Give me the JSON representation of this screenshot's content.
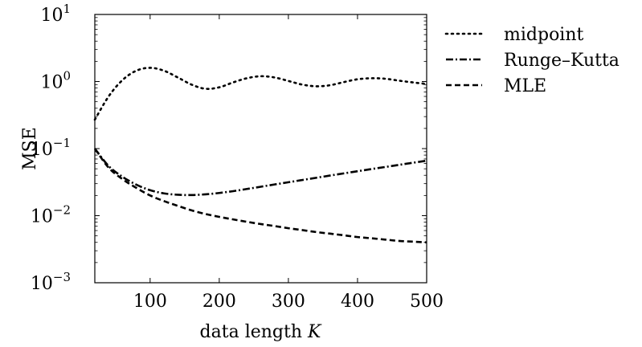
{
  "chart_data": {
    "type": "line",
    "title": "",
    "xlabel": "data length",
    "xlabel_var": "K",
    "ylabel": "MSE",
    "xlim": [
      20,
      500
    ],
    "ylim": [
      0.001,
      10
    ],
    "yscale": "log",
    "grid": false,
    "legend_position": "outside-right",
    "x_ticks": [
      {
        "value": 100,
        "label": "100"
      },
      {
        "value": 200,
        "label": "200"
      },
      {
        "value": 300,
        "label": "300"
      },
      {
        "value": 400,
        "label": "400"
      },
      {
        "value": 500,
        "label": "500"
      }
    ],
    "y_ticks": [
      {
        "value": 0.001,
        "base": "10",
        "exp": "−3"
      },
      {
        "value": 0.01,
        "base": "10",
        "exp": "−2"
      },
      {
        "value": 0.1,
        "base": "10",
        "exp": "−1"
      },
      {
        "value": 1,
        "base": "10",
        "exp": "0"
      },
      {
        "value": 10,
        "base": "10",
        "exp": "1"
      }
    ],
    "series": [
      {
        "name": "midpoint",
        "dash": "dotted",
        "x": [
          20,
          40,
          60,
          80,
          100,
          120,
          140,
          160,
          180,
          200,
          220,
          240,
          260,
          280,
          300,
          320,
          340,
          360,
          380,
          400,
          420,
          440,
          460,
          480,
          500
        ],
        "y": [
          0.27,
          0.6,
          1.05,
          1.45,
          1.6,
          1.45,
          1.15,
          0.9,
          0.78,
          0.82,
          0.97,
          1.12,
          1.2,
          1.15,
          1.02,
          0.9,
          0.85,
          0.88,
          0.98,
          1.08,
          1.12,
          1.1,
          1.03,
          0.97,
          0.92
        ]
      },
      {
        "name": "Runge–Kutta",
        "dash": "dashdot",
        "x": [
          20,
          40,
          60,
          80,
          100,
          120,
          140,
          160,
          180,
          200,
          220,
          240,
          260,
          280,
          300,
          320,
          340,
          360,
          380,
          400,
          420,
          440,
          460,
          480,
          500
        ],
        "y": [
          0.1,
          0.055,
          0.038,
          0.029,
          0.024,
          0.0215,
          0.0205,
          0.0203,
          0.0208,
          0.0218,
          0.0232,
          0.025,
          0.027,
          0.0292,
          0.0315,
          0.034,
          0.0367,
          0.0396,
          0.0427,
          0.046,
          0.0495,
          0.0532,
          0.0572,
          0.0615,
          0.066
        ]
      },
      {
        "name": "MLE",
        "dash": "dashed",
        "x": [
          20,
          40,
          60,
          80,
          100,
          120,
          140,
          160,
          180,
          200,
          220,
          240,
          260,
          280,
          300,
          320,
          340,
          360,
          380,
          400,
          420,
          440,
          460,
          480,
          500
        ],
        "y": [
          0.1,
          0.052,
          0.035,
          0.026,
          0.02,
          0.0165,
          0.014,
          0.012,
          0.0106,
          0.0096,
          0.0088,
          0.0081,
          0.0075,
          0.007,
          0.0065,
          0.0061,
          0.0057,
          0.0054,
          0.0051,
          0.0048,
          0.0046,
          0.0044,
          0.0042,
          0.0041,
          0.004
        ]
      }
    ]
  }
}
